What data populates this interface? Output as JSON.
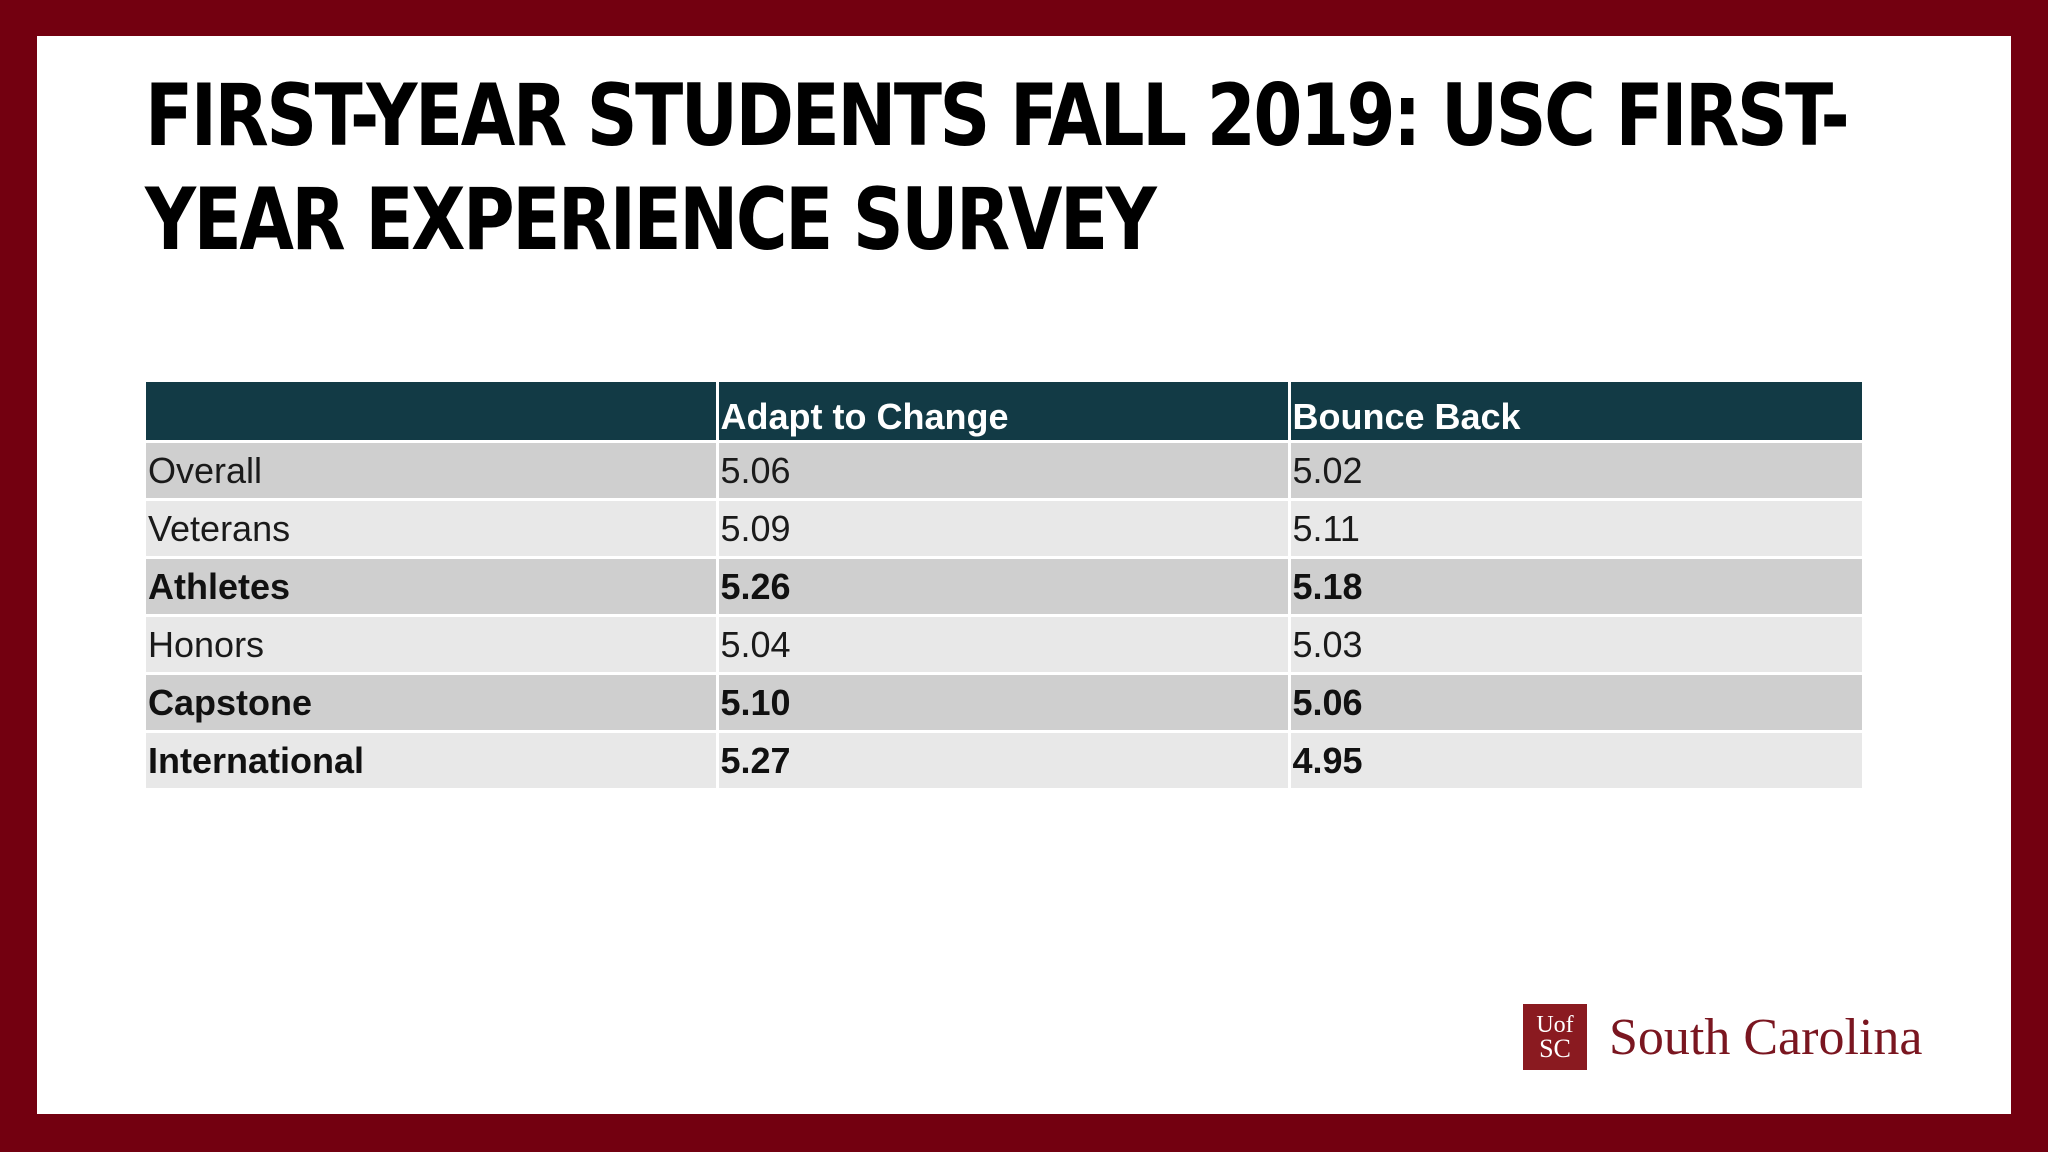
{
  "slide": {
    "title": "FIRST-YEAR STUDENTS FALL 2019:  USC FIRST-YEAR EXPERIENCE SURVEY"
  },
  "table": {
    "headers": [
      "",
      "Adapt to Change",
      "Bounce Back"
    ],
    "rows": [
      {
        "label": "Overall",
        "adapt": "5.06",
        "bounce": "5.02",
        "bold": false
      },
      {
        "label": "Veterans",
        "adapt": "5.09",
        "bounce": "5.11",
        "bold": false
      },
      {
        "label": "Athletes",
        "adapt": "5.26",
        "bounce": "5.18",
        "bold": true
      },
      {
        "label": "Honors",
        "adapt": "5.04",
        "bounce": "5.03",
        "bold": false
      },
      {
        "label": "Capstone",
        "adapt": "5.10",
        "bounce": "5.06",
        "bold": true
      },
      {
        "label": "International",
        "adapt": "5.27",
        "bounce": "4.95",
        "bold": true
      }
    ]
  },
  "logo": {
    "mark_top": "Uof",
    "mark_bottom": "SC",
    "text": "South Carolina"
  },
  "colors": {
    "frame": "#730010",
    "header_bg": "#123a45",
    "row_dark": "#cfcfcf",
    "row_light": "#e8e8e8",
    "logo": "#8a1a20"
  }
}
